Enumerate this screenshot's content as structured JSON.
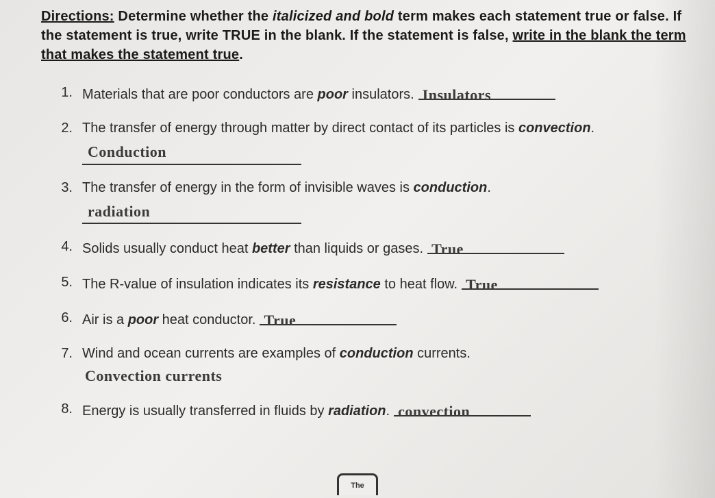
{
  "directions": {
    "label": "Directions:",
    "part1": " Determine whether the ",
    "ital": "italicized and bold",
    "part2": " term makes each statement true or false. If the statement is true, write ",
    "true_word": "TRUE",
    "part3": " in the blank. If the statement is false, ",
    "under": "write in the blank the term that makes the statement true",
    "period": "."
  },
  "questions": [
    {
      "num": "1.",
      "pre": "Materials that are poor conductors are ",
      "term": "poor",
      "post": " insulators.",
      "answer": "Insulators",
      "answer_position": "inline"
    },
    {
      "num": "2.",
      "pre": "The transfer of energy through matter by direct contact of its particles is ",
      "term": "convection",
      "post": ".",
      "answer": "Conduction",
      "answer_position": "below"
    },
    {
      "num": "3.",
      "pre": "The transfer of energy in the form of invisible waves is ",
      "term": "conduction",
      "post": ".",
      "answer": "radiation",
      "answer_position": "below"
    },
    {
      "num": "4.",
      "pre": "Solids usually conduct heat ",
      "term": "better",
      "post": " than liquids or gases.",
      "answer": "True",
      "answer_position": "inline"
    },
    {
      "num": "5.",
      "pre": "The R-value of insulation indicates its ",
      "term": "resistance",
      "post": " to heat flow.",
      "answer": "True",
      "answer_position": "inline"
    },
    {
      "num": "6.",
      "pre": "Air is a ",
      "term": "poor",
      "post": " heat conductor.",
      "answer": "True",
      "answer_position": "inline"
    },
    {
      "num": "7.",
      "pre": "Wind and ocean currents are examples of ",
      "term": "conduction",
      "post": " currents.",
      "answer": "Convection currents",
      "answer_position": "below-noline"
    },
    {
      "num": "8.",
      "pre": "Energy is usually transferred in fluids by ",
      "term": "radiation",
      "post": ".",
      "answer": "convection",
      "answer_position": "inline"
    }
  ],
  "footer_icon_text": "The"
}
